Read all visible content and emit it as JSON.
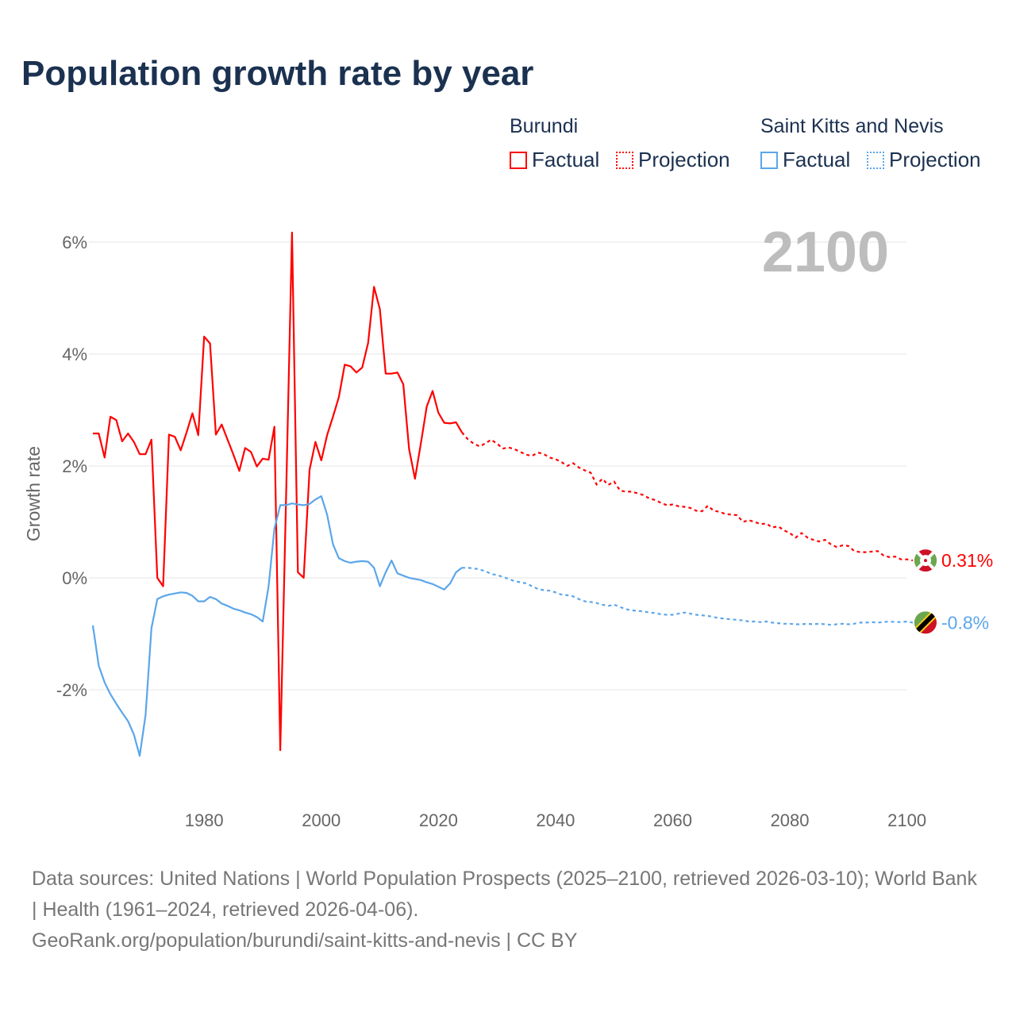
{
  "title": "Population growth rate by year",
  "legend": {
    "groups": [
      {
        "country": "Burundi",
        "factual": "Factual",
        "projection": "Projection",
        "color": "#ff0000"
      },
      {
        "country": "Saint Kitts and Nevis",
        "factual": "Factual",
        "projection": "Projection",
        "color": "#5ba6ea"
      }
    ]
  },
  "footer": {
    "sources": "Data sources: United Nations | World Population Prospects (2025–2100, retrieved 2026-03-10); World Bank | Health (1961–2024, retrieved 2026-04-06).",
    "link": "GeoRank.org/population/burundi/saint-kitts-and-nevis | CC BY"
  },
  "chart_data": {
    "type": "line",
    "title": "Population growth rate by year",
    "xlabel": "",
    "ylabel": "Growth rate",
    "xlim": [
      1961,
      2100
    ],
    "ylim": [
      -3.8,
      6.2
    ],
    "grid": true,
    "year_watermark": "2100",
    "x_ticks": [
      "1980",
      "2000",
      "2020",
      "2040",
      "2060",
      "2080",
      "2100"
    ],
    "y_ticks": [
      {
        "value": 6,
        "label": "6%"
      },
      {
        "value": 4,
        "label": "4%"
      },
      {
        "value": 2,
        "label": "2%"
      },
      {
        "value": 0,
        "label": "0%"
      },
      {
        "value": -2,
        "label": "-2%"
      }
    ],
    "series": [
      {
        "name": "Burundi",
        "color": "#ff0000",
        "end_label": "0.31%",
        "flag_icon": "burundi-flag-icon",
        "factual_start": 1961,
        "factual": [
          2.58,
          2.58,
          2.15,
          2.88,
          2.82,
          2.44,
          2.58,
          2.43,
          2.21,
          2.21,
          2.47,
          0.0,
          -0.15,
          2.56,
          2.52,
          2.28,
          2.6,
          2.94,
          2.55,
          4.31,
          4.19,
          2.56,
          2.74,
          2.47,
          2.2,
          1.91,
          2.32,
          2.25,
          1.99,
          2.13,
          2.11,
          2.7,
          -3.08,
          1.5,
          6.17,
          0.1,
          0.0,
          1.93,
          2.43,
          2.1,
          2.55,
          2.88,
          3.23,
          3.81,
          3.78,
          3.67,
          3.76,
          4.2,
          5.2,
          4.8,
          3.65,
          3.65,
          3.67,
          3.46,
          2.3,
          1.77,
          2.4,
          3.06,
          3.34,
          2.95,
          2.77,
          2.76,
          2.78,
          2.6
        ],
        "projection_start": 2024,
        "projection": [
          2.6,
          2.48,
          2.4,
          2.35,
          2.4,
          2.47,
          2.4,
          2.31,
          2.33,
          2.3,
          2.25,
          2.2,
          2.18,
          2.24,
          2.21,
          2.15,
          2.12,
          2.07,
          2.0,
          2.05,
          1.97,
          1.92,
          1.88,
          1.67,
          1.77,
          1.66,
          1.72,
          1.56,
          1.54,
          1.54,
          1.51,
          1.48,
          1.42,
          1.39,
          1.34,
          1.3,
          1.31,
          1.28,
          1.27,
          1.25,
          1.2,
          1.19,
          1.29,
          1.2,
          1.18,
          1.14,
          1.13,
          1.12,
          1.0,
          1.03,
          1.0,
          0.96,
          0.97,
          0.9,
          0.92,
          0.85,
          0.8,
          0.72,
          0.8,
          0.72,
          0.68,
          0.65,
          0.68,
          0.6,
          0.55,
          0.58,
          0.57,
          0.48,
          0.46,
          0.46,
          0.47,
          0.48,
          0.4,
          0.37,
          0.38,
          0.33,
          0.33,
          0.31
        ]
      },
      {
        "name": "Saint Kitts and Nevis",
        "color": "#5ba6ea",
        "end_label": "-0.8%",
        "flag_icon": "saint-kitts-and-nevis-flag-icon",
        "factual_start": 1961,
        "factual": [
          -0.85,
          -1.57,
          -1.87,
          -2.08,
          -2.25,
          -2.41,
          -2.56,
          -2.8,
          -3.18,
          -2.45,
          -0.9,
          -0.38,
          -0.33,
          -0.3,
          -0.28,
          -0.26,
          -0.27,
          -0.32,
          -0.42,
          -0.42,
          -0.34,
          -0.38,
          -0.46,
          -0.5,
          -0.55,
          -0.58,
          -0.62,
          -0.65,
          -0.7,
          -0.78,
          -0.15,
          0.88,
          1.3,
          1.3,
          1.33,
          1.31,
          1.3,
          1.32,
          1.4,
          1.46,
          1.13,
          0.6,
          0.35,
          0.3,
          0.27,
          0.29,
          0.3,
          0.29,
          0.18,
          -0.15,
          0.1,
          0.31,
          0.08,
          0.04,
          0.0,
          -0.02,
          -0.04,
          -0.08,
          -0.11,
          -0.16,
          -0.21,
          -0.1,
          0.1,
          0.18
        ],
        "projection_start": 2024,
        "projection": [
          0.18,
          0.18,
          0.17,
          0.15,
          0.12,
          0.07,
          0.05,
          0.02,
          -0.02,
          -0.06,
          -0.08,
          -0.1,
          -0.15,
          -0.2,
          -0.22,
          -0.23,
          -0.26,
          -0.3,
          -0.31,
          -0.33,
          -0.38,
          -0.42,
          -0.43,
          -0.45,
          -0.48,
          -0.5,
          -0.48,
          -0.52,
          -0.56,
          -0.58,
          -0.59,
          -0.6,
          -0.62,
          -0.63,
          -0.65,
          -0.66,
          -0.66,
          -0.64,
          -0.62,
          -0.64,
          -0.66,
          -0.67,
          -0.68,
          -0.7,
          -0.72,
          -0.73,
          -0.74,
          -0.75,
          -0.76,
          -0.78,
          -0.78,
          -0.79,
          -0.78,
          -0.8,
          -0.81,
          -0.82,
          -0.82,
          -0.83,
          -0.83,
          -0.82,
          -0.83,
          -0.82,
          -0.83,
          -0.84,
          -0.83,
          -0.82,
          -0.83,
          -0.82,
          -0.8,
          -0.8,
          -0.79,
          -0.8,
          -0.79,
          -0.78,
          -0.79,
          -0.79,
          -0.78,
          -0.8
        ]
      }
    ]
  }
}
